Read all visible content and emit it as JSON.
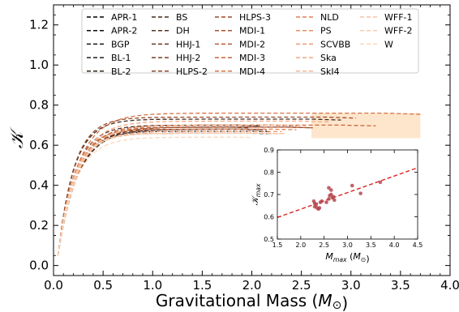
{
  "chart_data": [
    {
      "type": "line",
      "xlabel": "Gravitational Mass (M⊙)",
      "xlabel_parts": [
        "Gravitational Mass (",
        "M",
        "⊙",
        ")"
      ],
      "ylabel": "𝒦",
      "xlim": [
        0.0,
        4.0
      ],
      "ylim": [
        -0.05,
        1.3
      ],
      "xticks": [
        "0.0",
        "0.5",
        "1.0",
        "1.5",
        "2.0",
        "2.5",
        "3.0",
        "3.5",
        "4.0"
      ],
      "yticks": [
        "0.0",
        "0.2",
        "0.4",
        "0.6",
        "0.8",
        "1.0",
        "1.2"
      ],
      "band": {
        "x": [
          2.6,
          3.7
        ],
        "y": [
          0.635,
          0.76
        ],
        "color": "#fde6cc"
      },
      "legend": {
        "placement": "top-center",
        "columns": 5,
        "line_style": "dashed"
      },
      "series": [
        {
          "name": "APR-1",
          "color": "#000000",
          "m_max": 2.18,
          "k_max": 0.66
        },
        {
          "name": "APR-2",
          "color": "#0b0a09",
          "m_max": 2.2,
          "k_max": 0.67
        },
        {
          "name": "BGP",
          "color": "#17130f",
          "m_max": 1.98,
          "k_max": 0.69
        },
        {
          "name": "BL-1",
          "color": "#241c15",
          "m_max": 2.08,
          "k_max": 0.7
        },
        {
          "name": "BL-2",
          "color": "#32241a",
          "m_max": 2.1,
          "k_max": 0.68
        },
        {
          "name": "BS",
          "color": "#432b1e",
          "m_max": 2.9,
          "k_max": 0.73
        },
        {
          "name": "DH",
          "color": "#553221",
          "m_max": 2.05,
          "k_max": 0.7
        },
        {
          "name": "HHJ-1",
          "color": "#673824",
          "m_max": 2.15,
          "k_max": 0.68
        },
        {
          "name": "HHJ-2",
          "color": "#793e27",
          "m_max": 2.45,
          "k_max": 0.7
        },
        {
          "name": "HLPS-2",
          "color": "#8a4429",
          "m_max": 2.6,
          "k_max": 0.69
        },
        {
          "name": "HLPS-3",
          "color": "#9b4a2c",
          "m_max": 3.05,
          "k_max": 0.74
        },
        {
          "name": "MDI-1",
          "color": "#ab522f",
          "m_max": 2.28,
          "k_max": 0.66
        },
        {
          "name": "MDI-2",
          "color": "#bb5b33",
          "m_max": 2.62,
          "k_max": 0.69
        },
        {
          "name": "MDI-3",
          "color": "#ca653a",
          "m_max": 3.25,
          "k_max": 0.7
        },
        {
          "name": "MDI-4",
          "color": "#d77144",
          "m_max": 3.7,
          "k_max": 0.76
        },
        {
          "name": "NLD",
          "color": "#e27e52",
          "m_max": 2.45,
          "k_max": 0.68
        },
        {
          "name": "PS",
          "color": "#ea8c62",
          "m_max": 2.35,
          "k_max": 0.66
        },
        {
          "name": "SCVBB",
          "color": "#f09a73",
          "m_max": 2.3,
          "k_max": 0.67
        },
        {
          "name": "Ska",
          "color": "#f4a883",
          "m_max": 2.78,
          "k_max": 0.72
        },
        {
          "name": "SkI4",
          "color": "#f6b591",
          "m_max": 2.55,
          "k_max": 0.7
        },
        {
          "name": "WFF-1",
          "color": "#f8c09f",
          "m_max": 2.3,
          "k_max": 0.66
        },
        {
          "name": "WFF-2",
          "color": "#f9cbab",
          "m_max": 2.35,
          "k_max": 0.66
        },
        {
          "name": "W",
          "color": "#fbd5b8",
          "m_max": 2.0,
          "k_max": 0.64
        }
      ]
    },
    {
      "type": "scatter",
      "xlabel": "M_max (M⊙)",
      "xlabel_parts": [
        "M",
        "max",
        " (",
        "M",
        "⊙",
        ")"
      ],
      "ylabel": "𝒦_max",
      "ylabel_parts": [
        "𝒦",
        "max"
      ],
      "xlim": [
        1.5,
        4.5
      ],
      "ylim": [
        0.5,
        0.9
      ],
      "xticks": [
        "1.5",
        "2.0",
        "2.5",
        "3.0",
        "3.5",
        "4.0",
        "4.5"
      ],
      "yticks": [
        "0.5",
        "0.6",
        "0.7",
        "0.8",
        "0.9"
      ],
      "point_color": "#b5474f",
      "points": [
        {
          "x": 2.28,
          "y": 0.67
        },
        {
          "x": 2.3,
          "y": 0.645
        },
        {
          "x": 2.33,
          "y": 0.655
        },
        {
          "x": 2.35,
          "y": 0.64
        },
        {
          "x": 2.38,
          "y": 0.635
        },
        {
          "x": 2.4,
          "y": 0.64
        },
        {
          "x": 2.3,
          "y": 0.66
        },
        {
          "x": 2.42,
          "y": 0.665
        },
        {
          "x": 2.45,
          "y": 0.67
        },
        {
          "x": 2.55,
          "y": 0.665
        },
        {
          "x": 2.6,
          "y": 0.68
        },
        {
          "x": 2.6,
          "y": 0.73
        },
        {
          "x": 2.62,
          "y": 0.695
        },
        {
          "x": 2.65,
          "y": 0.7
        },
        {
          "x": 2.65,
          "y": 0.72
        },
        {
          "x": 2.68,
          "y": 0.685
        },
        {
          "x": 2.7,
          "y": 0.69
        },
        {
          "x": 2.72,
          "y": 0.675
        },
        {
          "x": 3.1,
          "y": 0.74
        },
        {
          "x": 3.28,
          "y": 0.705
        },
        {
          "x": 3.7,
          "y": 0.755
        }
      ],
      "fit": {
        "x": [
          1.5,
          4.5
        ],
        "y": [
          0.597,
          0.82
        ],
        "color": "#dd2222",
        "style": "dashed"
      }
    }
  ]
}
